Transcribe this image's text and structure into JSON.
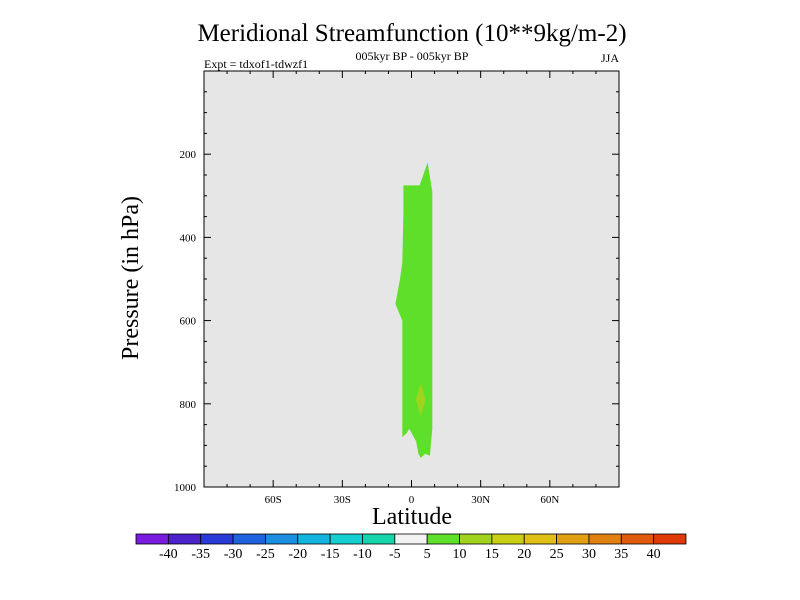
{
  "chart_data": {
    "type": "heatmap",
    "title": "Meridional Streamfunction (10**9kg/m-2)",
    "subtitle_center": "005kyr BP - 005kyr BP",
    "subtitle_left": "Expt = tdxof1-tdwzf1",
    "subtitle_right": "JJA",
    "xlabel": "Latitude",
    "ylabel": "Pressure (in hPa)",
    "xlim": [
      -90,
      90
    ],
    "ylim": [
      1000,
      0
    ],
    "x_ticks": [
      {
        "value": -60,
        "label": "60S"
      },
      {
        "value": -30,
        "label": "30S"
      },
      {
        "value": 0,
        "label": "0"
      },
      {
        "value": 30,
        "label": "30N"
      },
      {
        "value": 60,
        "label": "60N"
      }
    ],
    "y_ticks": [
      {
        "value": 200,
        "label": "200"
      },
      {
        "value": 400,
        "label": "400"
      },
      {
        "value": 600,
        "label": "600"
      },
      {
        "value": 800,
        "label": "800"
      },
      {
        "value": 1000,
        "label": "1000"
      }
    ],
    "background_color": "#e6e6e6",
    "regions": [
      {
        "name": "contour-5-to-10",
        "range": "5 to 10",
        "color": "#5ee02a",
        "outline": [
          [
            -3.5,
            275
          ],
          [
            3.5,
            275
          ],
          [
            7,
            220
          ],
          [
            9,
            290
          ],
          [
            9,
            860
          ],
          [
            8,
            925
          ],
          [
            6,
            920
          ],
          [
            4,
            930
          ],
          [
            3,
            920
          ],
          [
            2,
            890
          ],
          [
            0,
            870
          ],
          [
            -1,
            860
          ],
          [
            -2,
            870
          ],
          [
            -4,
            880
          ],
          [
            -4,
            600
          ],
          [
            -7,
            560
          ],
          [
            -5,
            500
          ],
          [
            -4,
            460
          ],
          [
            -3.5,
            340
          ]
        ]
      },
      {
        "name": "contour-10-to-15",
        "range": "10 to 15",
        "color": "#a2d31c",
        "outline": [
          [
            4,
            750
          ],
          [
            6,
            790
          ],
          [
            4,
            830
          ],
          [
            2,
            790
          ]
        ]
      }
    ],
    "colorbar": {
      "colors": [
        "#7a1ce0",
        "#4b22c8",
        "#2a3ad8",
        "#1f62e0",
        "#1a8ee0",
        "#14b4e0",
        "#14cfd0",
        "#14d6a8",
        "#f2f2f2",
        "#5ee02a",
        "#a2d31c",
        "#c9d014",
        "#e0c014",
        "#e0a012",
        "#e08010",
        "#e05a0c",
        "#e03a08"
      ],
      "labels": [
        "-40",
        "-35",
        "-30",
        "-25",
        "-20",
        "-15",
        "-10",
        "-5",
        "5",
        "10",
        "15",
        "20",
        "25",
        "30",
        "35",
        "40"
      ]
    }
  }
}
